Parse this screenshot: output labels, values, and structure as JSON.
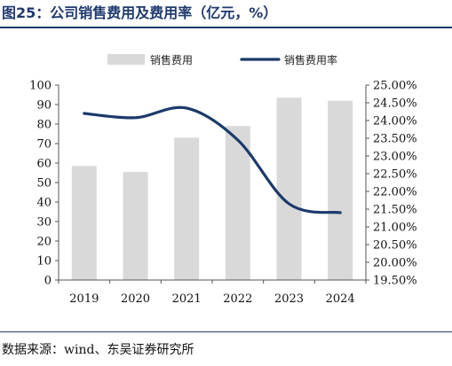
{
  "figure_title": "图25：公司销售费用及费用率（亿元，%）",
  "source_note": "数据来源：wind、东吴证券研究所",
  "colors": {
    "bar": "#d9d9d9",
    "line": "#1b3a6b",
    "title": "#1f3a6e"
  },
  "chart_data": {
    "type": "bar",
    "categories": [
      "2019",
      "2020",
      "2021",
      "2022",
      "2023",
      "2024"
    ],
    "series": [
      {
        "name": "销售费用",
        "type": "bar",
        "axis": "left",
        "values": [
          58.5,
          55.5,
          73,
          79,
          93.5,
          92
        ]
      },
      {
        "name": "销售费用率",
        "type": "line",
        "axis": "right",
        "values": [
          24.2,
          24.08,
          24.35,
          23.45,
          21.65,
          21.4
        ]
      }
    ],
    "ylim_left": [
      0,
      100
    ],
    "yticks_left": [
      "0",
      "10",
      "20",
      "30",
      "40",
      "50",
      "60",
      "70",
      "80",
      "90",
      "100"
    ],
    "ylim_right": [
      19.5,
      25.0
    ],
    "yticks_right": [
      "19.50%",
      "20.00%",
      "20.50%",
      "21.00%",
      "21.50%",
      "22.00%",
      "22.50%",
      "23.00%",
      "23.50%",
      "24.00%",
      "24.50%",
      "25.00%"
    ],
    "legend_position": "top-center",
    "grid": false
  }
}
